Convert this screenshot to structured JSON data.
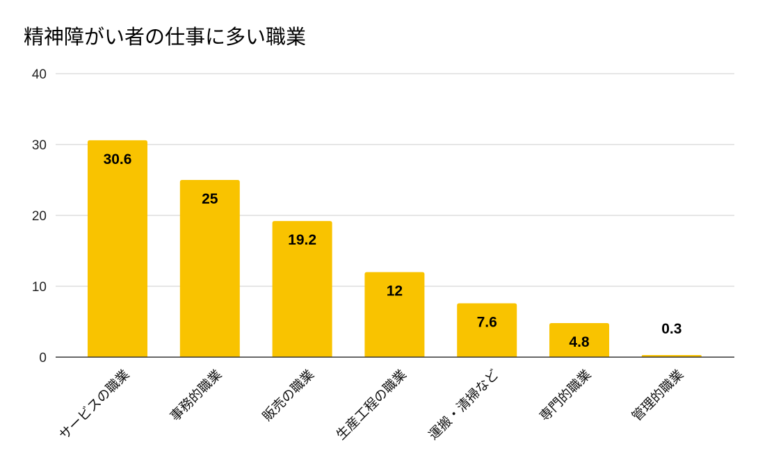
{
  "chart_data": {
    "type": "bar",
    "title": "精神障がい者の仕事に多い職業",
    "xlabel": "",
    "ylabel": "",
    "categories": [
      "サービスの職業",
      "事務的職業",
      "販売の職業",
      "生産工程の職業",
      "運搬・清掃など",
      "専門的職業",
      "管理的職業"
    ],
    "values": [
      30.6,
      25,
      19.2,
      12,
      7.6,
      4.8,
      0.3
    ],
    "value_labels": [
      "30.6",
      "25",
      "19.2",
      "12",
      "7.6",
      "4.8",
      "0.3"
    ],
    "ylim": [
      0,
      40
    ],
    "yticks": [
      0,
      10,
      20,
      30,
      40
    ],
    "ytick_labels": [
      "0",
      "10",
      "20",
      "30",
      "40"
    ],
    "grid": true,
    "legend": "none",
    "bar_color": "#F9C300",
    "grid_color": "#CCCCCC",
    "axis_color": "#333333"
  }
}
